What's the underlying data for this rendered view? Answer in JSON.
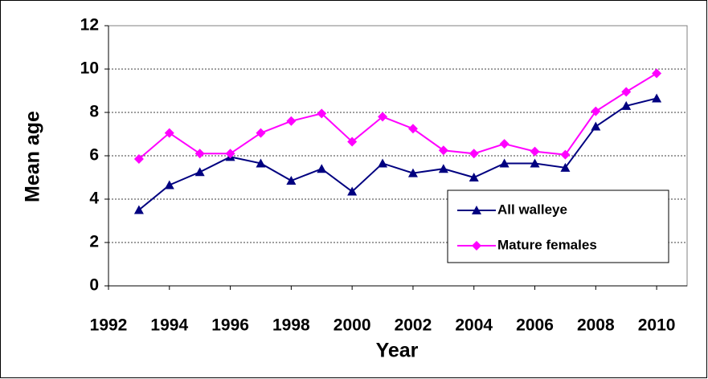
{
  "chart_data": {
    "type": "line",
    "x_label": "Year",
    "y_label": "Mean age",
    "x": [
      1993,
      1994,
      1995,
      1996,
      1997,
      1998,
      1999,
      2000,
      2001,
      2002,
      2003,
      2004,
      2005,
      2006,
      2007,
      2008,
      2009,
      2010
    ],
    "series": [
      {
        "name": "All walleye",
        "color": "#000080",
        "marker": "triangle",
        "values": [
          3.5,
          4.65,
          5.25,
          5.95,
          5.65,
          4.85,
          5.4,
          4.35,
          5.65,
          5.2,
          5.4,
          5.0,
          5.65,
          5.65,
          5.45,
          7.35,
          8.3,
          8.65
        ]
      },
      {
        "name": "Mature females",
        "color": "#ff00ff",
        "marker": "diamond",
        "values": [
          5.85,
          7.05,
          6.1,
          6.1,
          7.05,
          7.6,
          7.95,
          6.65,
          7.8,
          7.25,
          6.25,
          6.1,
          6.55,
          6.2,
          6.05,
          8.05,
          8.95,
          9.8
        ]
      }
    ],
    "xlim": [
      1992,
      2011
    ],
    "xticks": [
      1992,
      1994,
      1996,
      1998,
      2000,
      2002,
      2004,
      2006,
      2008,
      2010
    ],
    "ylim": [
      0,
      12
    ],
    "yticks": [
      0,
      2,
      4,
      6,
      8,
      10,
      12
    ],
    "grid": true,
    "legend_position": "right"
  }
}
